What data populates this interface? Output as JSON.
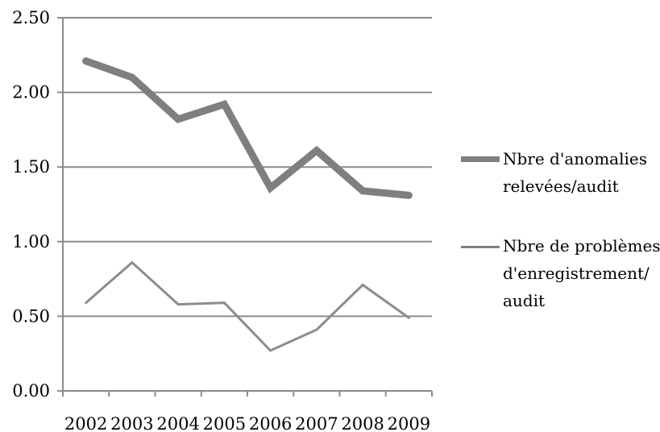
{
  "chart_data": {
    "type": "line",
    "categories": [
      "2002",
      "2003",
      "2004",
      "2005",
      "2006",
      "2007",
      "2008",
      "2009"
    ],
    "y_ticks": [
      "0.00",
      "0.50",
      "1.00",
      "1.50",
      "2.00",
      "2.50"
    ],
    "ylim": [
      0,
      2.5
    ],
    "grid": true,
    "legend_position": "right",
    "series": [
      {
        "name": "Nbre d'anomalies\nrelevées/audit",
        "values": [
          2.21,
          2.1,
          1.82,
          1.92,
          1.36,
          1.61,
          1.34,
          1.31
        ],
        "color": "#7f7f7f"
      },
      {
        "name": "Nbre de problèmes\nd'enregistrement/\naudit",
        "values": [
          0.59,
          0.86,
          0.58,
          0.59,
          0.27,
          0.41,
          0.71,
          0.49
        ],
        "color": "#8c8c8c"
      }
    ]
  }
}
